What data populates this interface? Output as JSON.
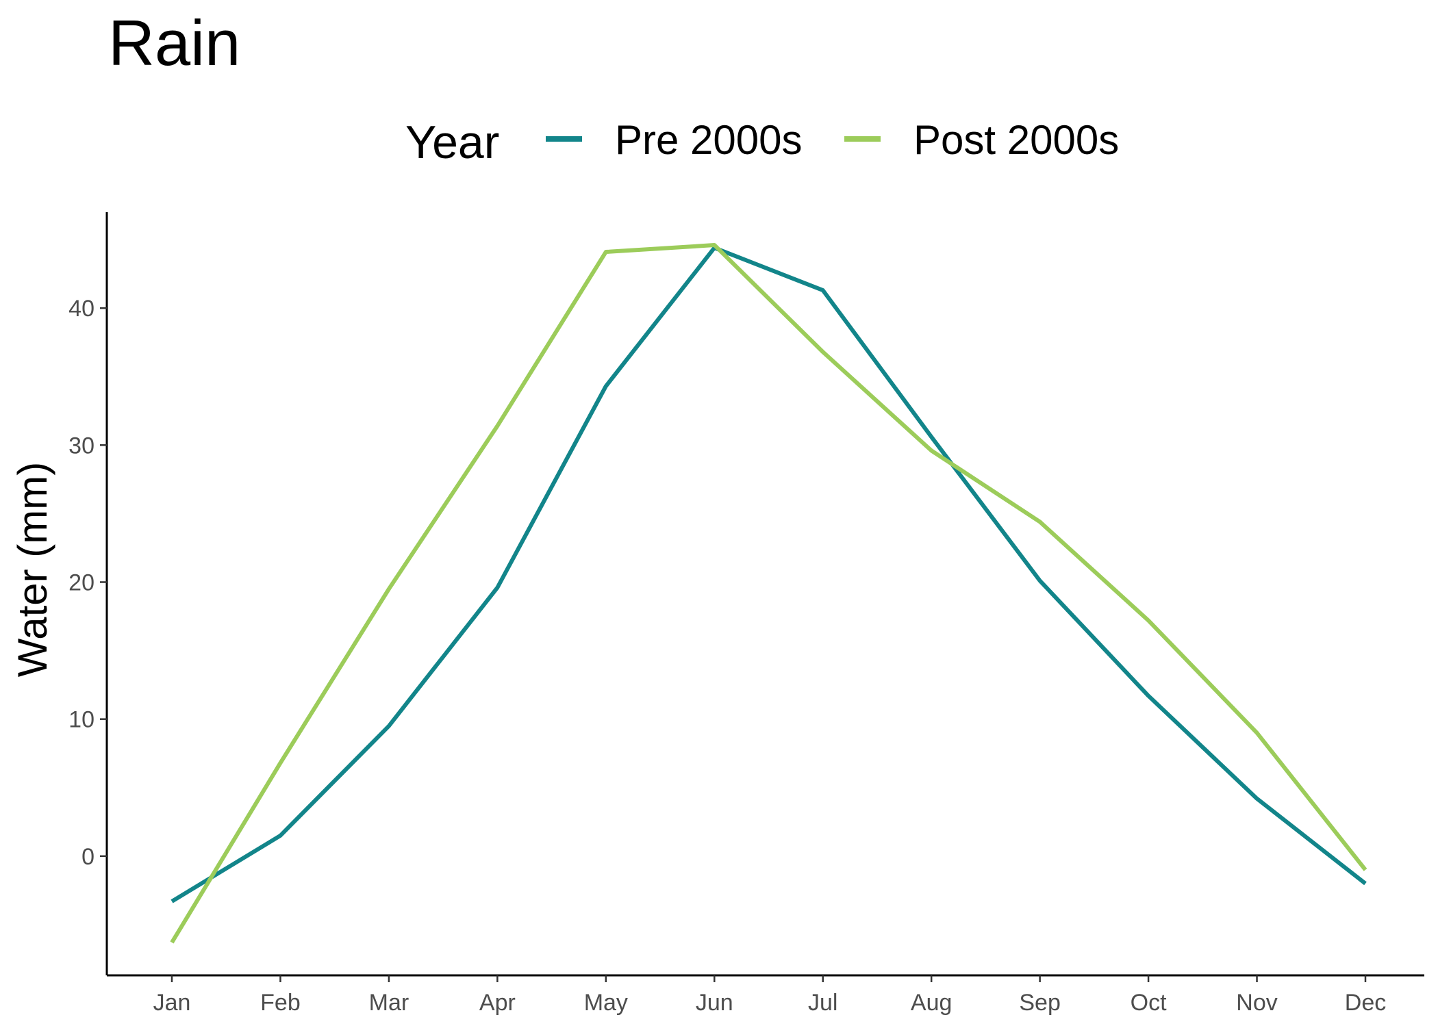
{
  "colors": {
    "background": "#ffffff",
    "pre_2000s": "#12858a",
    "post_2000s": "#9ccc5a",
    "axis": "#000000",
    "tick_text": "#4d4d4d"
  },
  "chart_data": {
    "type": "line",
    "title": "Rain",
    "xlabel": "",
    "ylabel": "Water (mm)",
    "categories": [
      "Jan",
      "Feb",
      "Mar",
      "Apr",
      "May",
      "Jun",
      "Jul",
      "Aug",
      "Sep",
      "Oct",
      "Nov",
      "Dec"
    ],
    "ylim": [
      -8.7,
      47
    ],
    "y_ticks": [
      0,
      10,
      20,
      30,
      40
    ],
    "grid": false,
    "legend": {
      "title": "Year",
      "placement": "top",
      "entries": [
        "Pre 2000s",
        "Post 2000s"
      ]
    },
    "series": [
      {
        "name": "Pre 2000s",
        "color": "#12858a",
        "values": [
          -3.3,
          1.5,
          9.5,
          19.6,
          34.3,
          44.4,
          41.3,
          30.6,
          20.1,
          11.7,
          4.2,
          -2.0
        ]
      },
      {
        "name": "Post 2000s",
        "color": "#9ccc5a",
        "values": [
          -6.3,
          6.8,
          19.5,
          31.4,
          44.1,
          44.6,
          36.8,
          29.6,
          24.4,
          17.2,
          9.0,
          -1.0
        ]
      }
    ]
  }
}
